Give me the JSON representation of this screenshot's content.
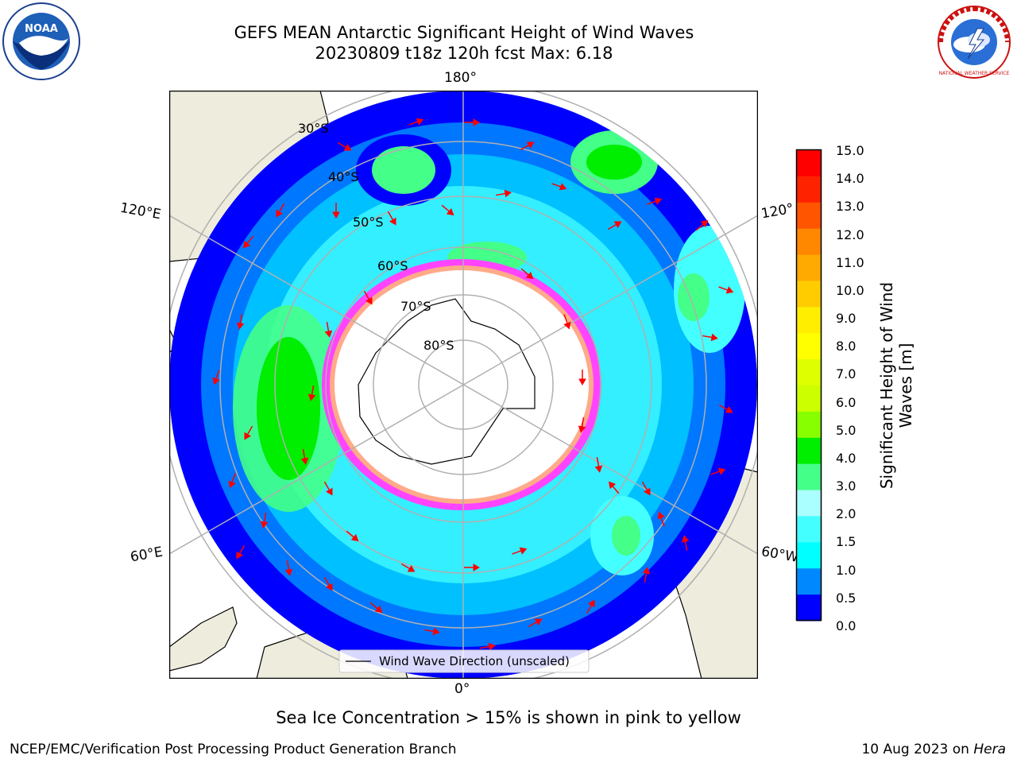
{
  "title": {
    "line1": "GEFS MEAN Antarctic Significant Height of Wind Waves",
    "line2": "20230809 t18z 120h fcst   Max: 6.18"
  },
  "logos": {
    "left_text": "NOAA",
    "right_text": "NATIONAL WEATHER SERVICE"
  },
  "map": {
    "longitude_labels": {
      "top": "180°",
      "bottom": "0°",
      "left_upper": "120°E",
      "left_lower": "60°E",
      "right_upper": "120°",
      "right_lower": "60°W"
    },
    "latitude_labels": [
      "30°S",
      "40°S",
      "50°S",
      "60°S",
      "70°S",
      "80°S"
    ],
    "legend_label": "Wind Wave Direction (unscaled)",
    "colors": {
      "land": "#eeecdc",
      "ocean_low": "#0000ff",
      "ice_edge": "#ff44ff",
      "arrow": "#ff0000",
      "grid": "#b0b0b0"
    }
  },
  "colorbar": {
    "title": "Significant Height of Wind Waves [m]",
    "title_line1": "Significant Height of Wind",
    "title_line2": "Waves [m]",
    "ticks": [
      "15.0",
      "14.0",
      "13.0",
      "12.0",
      "11.0",
      "10.0",
      "9.0",
      "8.0",
      "7.0",
      "6.0",
      "5.0",
      "4.0",
      "3.0",
      "2.0",
      "1.5",
      "1.0",
      "0.5",
      "0.0"
    ],
    "colors": [
      "#ff0000",
      "#ff2200",
      "#ff5500",
      "#ff8800",
      "#ffaa00",
      "#ffcc00",
      "#ffee00",
      "#ffff00",
      "#ddff00",
      "#ccff00",
      "#88ff00",
      "#00ee00",
      "#44ff88",
      "#aaffff",
      "#44ffff",
      "#00ffff",
      "#0088ff",
      "#0000ff"
    ]
  },
  "footer": {
    "note": "Sea Ice Concentration > 15% is shown in pink to yellow",
    "left": "NCEP/EMC/Verification Post Processing Product Generation Branch",
    "right_prefix": "10 Aug 2023 on ",
    "right_italic": "Hera"
  }
}
